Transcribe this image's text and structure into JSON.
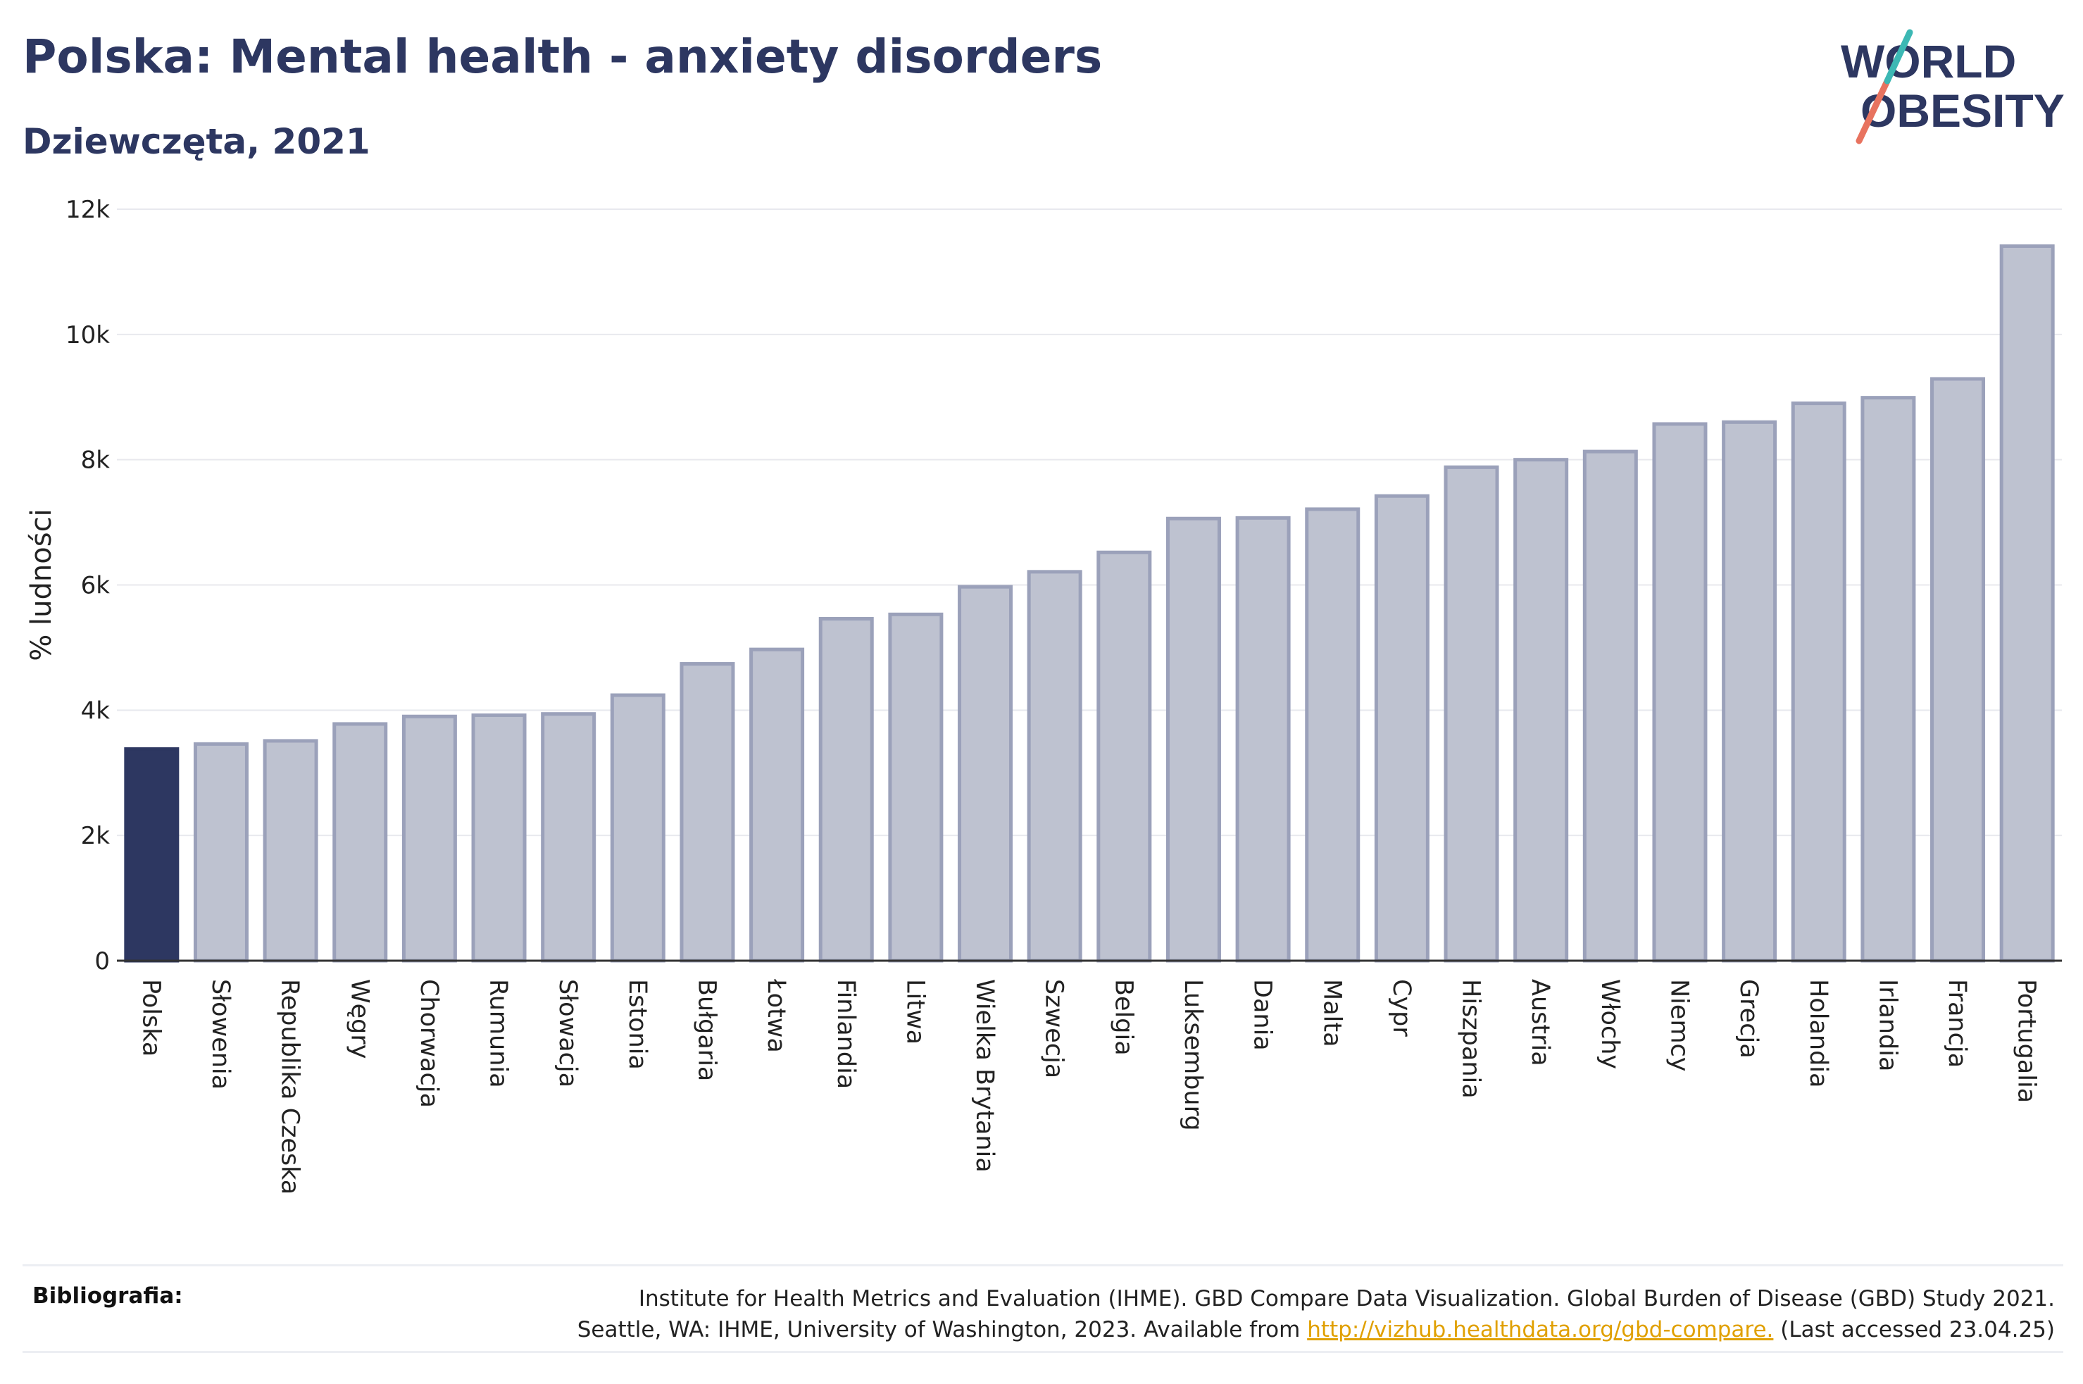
{
  "header": {
    "title": "Polska: Mental health - anxiety disorders",
    "subtitle": "Dziewczęta, 2021"
  },
  "logo": {
    "line1": "WORLD",
    "line2": "OBESITY"
  },
  "colors": {
    "highlight": "#2d3761",
    "bar_fill": "#bec2d0",
    "bar_stroke": "#9ba1ba",
    "grid": "#e8e9ee",
    "text": "#2d3761"
  },
  "chart_data": {
    "type": "bar",
    "ylabel": "% ludności",
    "xlabel": "",
    "ylim": [
      0,
      12000
    ],
    "yticks": [
      {
        "value": 0,
        "label": "0"
      },
      {
        "value": 2000,
        "label": "2k"
      },
      {
        "value": 4000,
        "label": "4k"
      },
      {
        "value": 6000,
        "label": "6k"
      },
      {
        "value": 8000,
        "label": "8k"
      },
      {
        "value": 10000,
        "label": "10k"
      },
      {
        "value": 12000,
        "label": "12k"
      }
    ],
    "grid": true,
    "highlight_category": "Polska",
    "categories": [
      "Polska",
      "Słowenia",
      "Republika Czeska",
      "Węgry",
      "Chorwacja",
      "Rumunia",
      "Słowacja",
      "Estonia",
      "Bułgaria",
      "Łotwa",
      "Finlandia",
      "Litwa",
      "Wielka Brytania",
      "Szwecja",
      "Belgia",
      "Luksemburg",
      "Dania",
      "Malta",
      "Cypr",
      "Hiszpania",
      "Austria",
      "Włochy",
      "Niemcy",
      "Grecja",
      "Holandia",
      "Irlandia",
      "Francja",
      "Portugalia"
    ],
    "values": [
      3380,
      3460,
      3510,
      3780,
      3900,
      3920,
      3940,
      4240,
      4740,
      4970,
      5460,
      5530,
      5970,
      6210,
      6520,
      7060,
      7070,
      7210,
      7420,
      7880,
      8000,
      8130,
      8570,
      8600,
      8900,
      8990,
      9290,
      11410
    ]
  },
  "footer": {
    "label": "Bibliografia:",
    "line1": "Institute for Health Metrics and Evaluation (IHME). GBD Compare Data Visualization. Global Burden of Disease (GBD) Study 2021.",
    "line2_pre": "Seattle, WA: IHME, University of Washington, 2023. Available from ",
    "link": "http://vizhub.healthdata.org/gbd-compare.",
    "line2_post": " (Last accessed 23.04.25)"
  }
}
